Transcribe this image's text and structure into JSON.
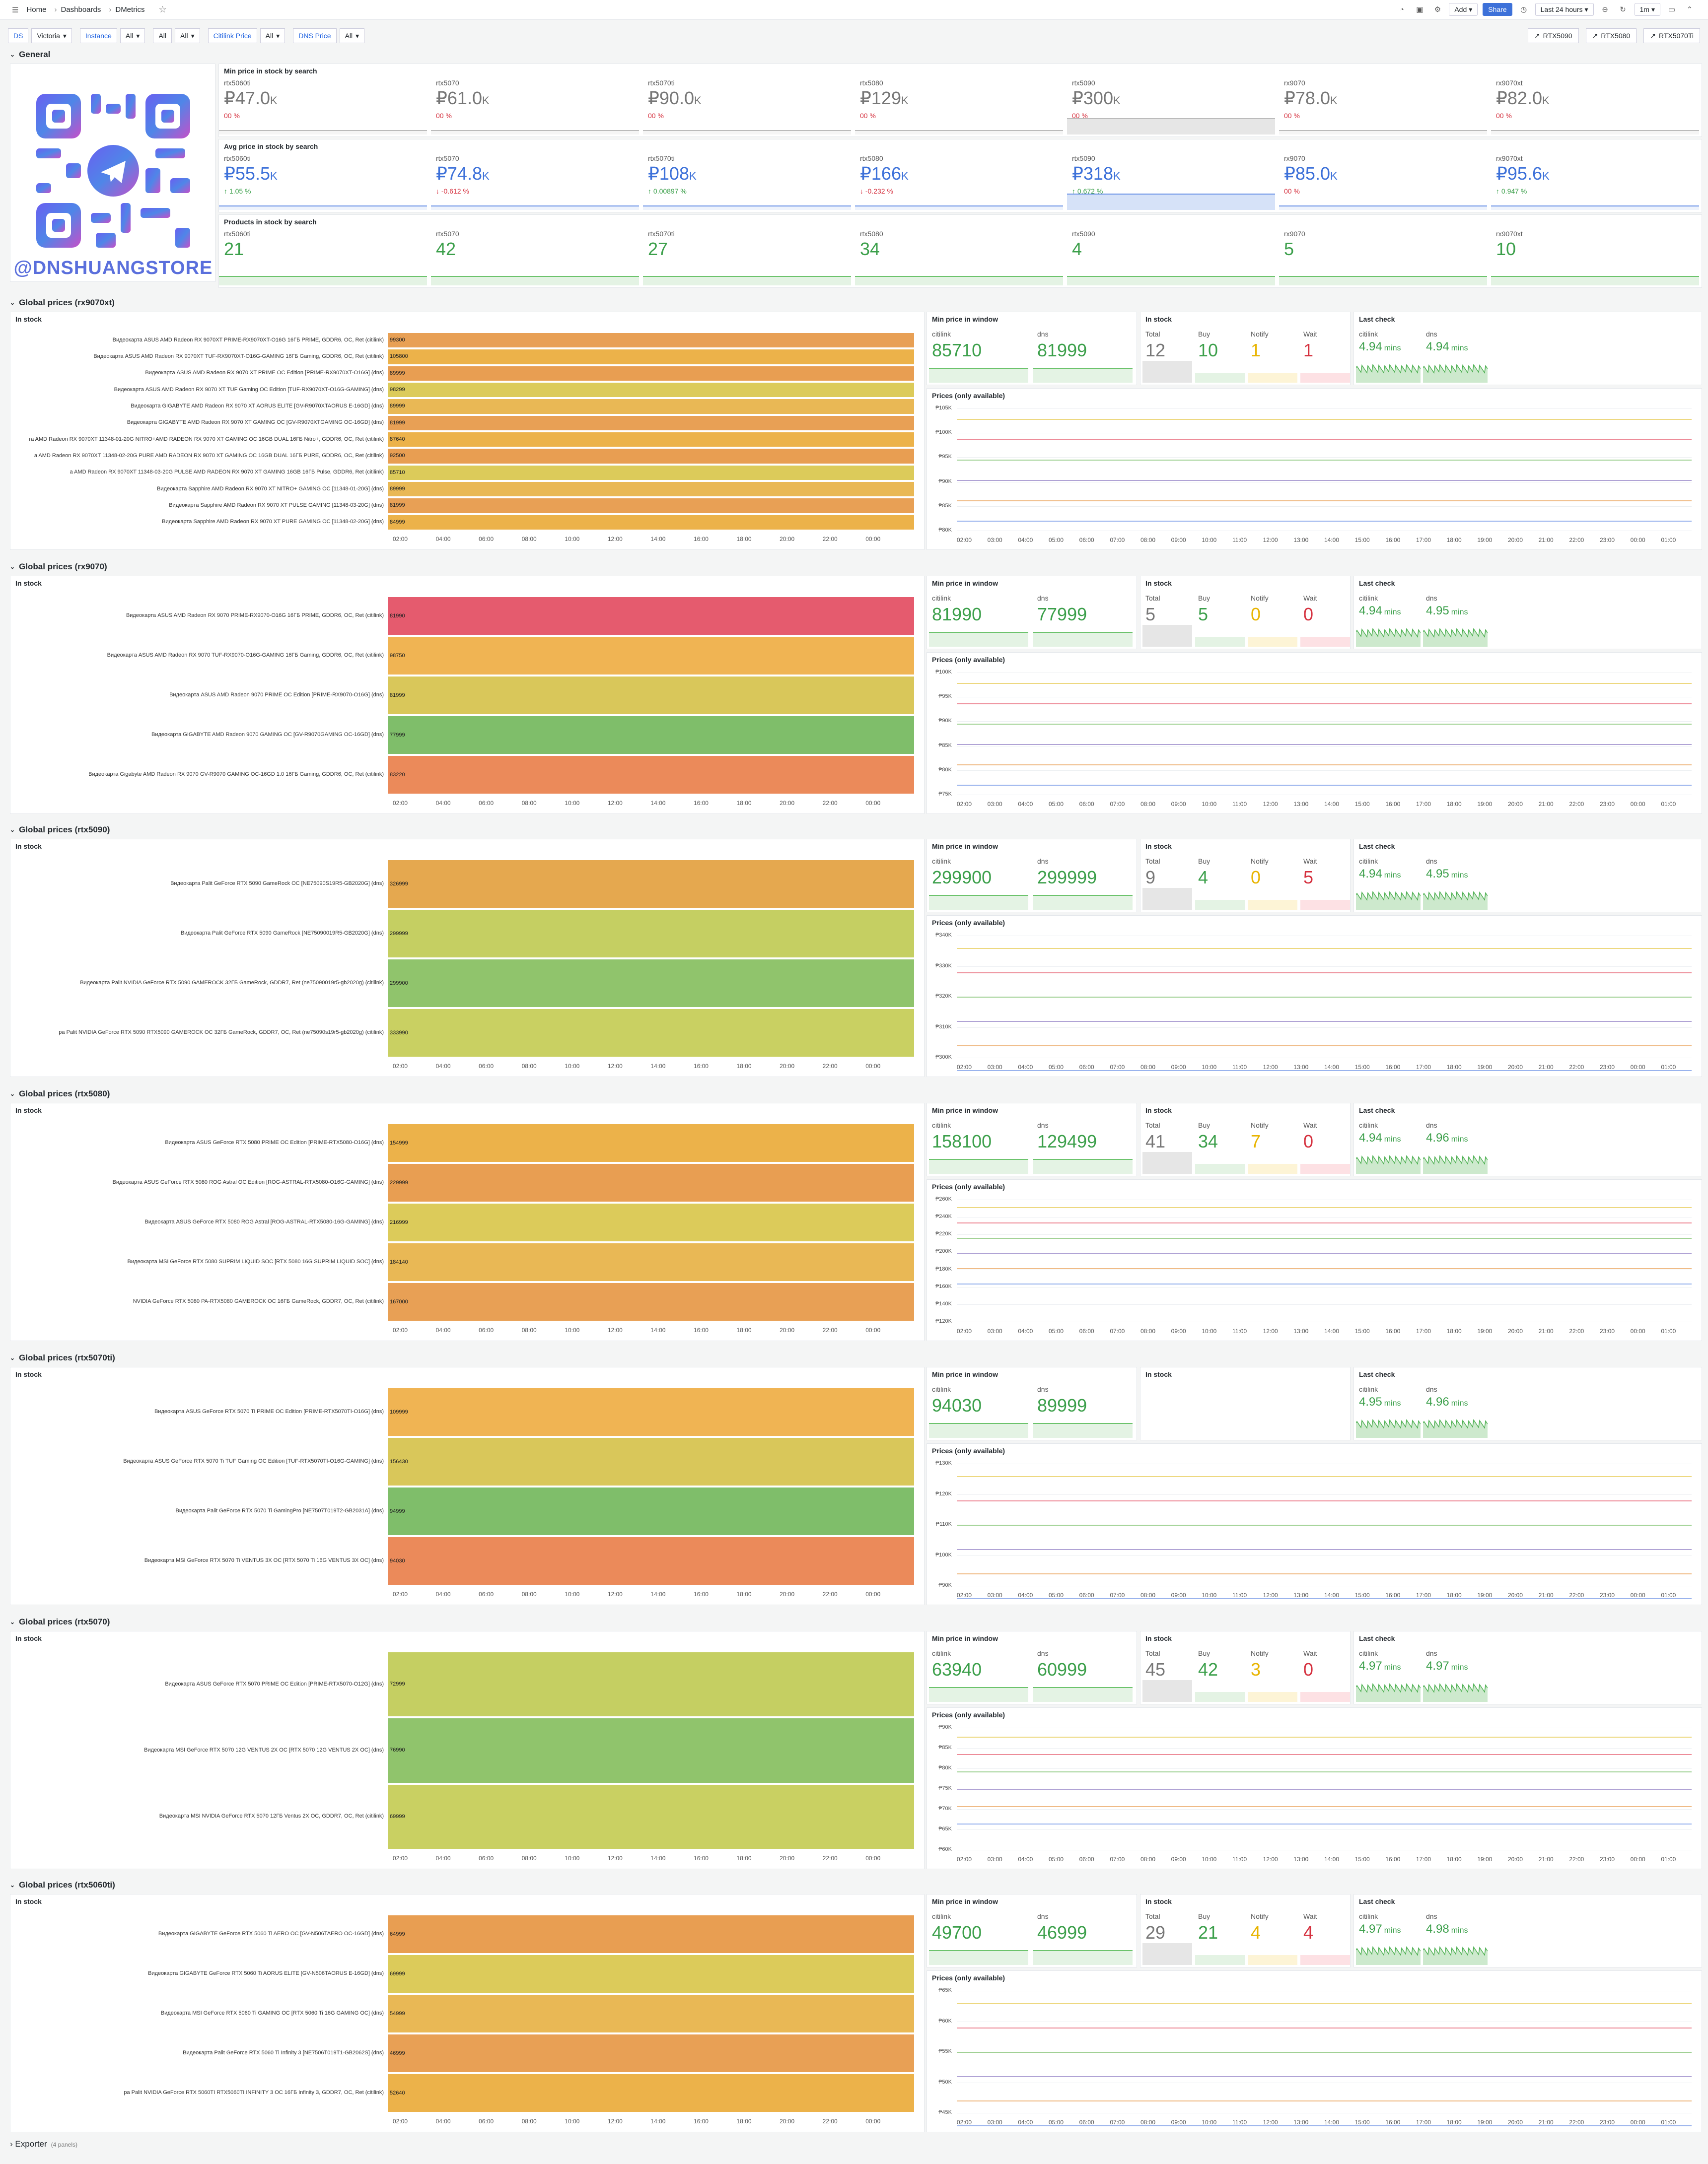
{
  "breadcrumb": [
    "Home",
    "Dashboards",
    "DMetrics"
  ],
  "topbar": {
    "add": "Add",
    "share": "Share",
    "time_range": "Last 24 hours",
    "refresh": "1m"
  },
  "variables": [
    {
      "label": "DS",
      "value": "Victoria"
    },
    {
      "label": "Instance",
      "value": "All"
    },
    {
      "label": "",
      "value": "All"
    },
    {
      "label": "",
      "value": "All"
    },
    {
      "label": "Citilink Price",
      "value": "All"
    },
    {
      "label": "DNS Price",
      "value": "All"
    }
  ],
  "links": [
    "RTX5090",
    "RTX5080",
    "RTX5070Ti"
  ],
  "general": {
    "title": "General",
    "logo_text": "@DNSHUANGSTORE",
    "min_title": "Min price in stock by search",
    "avg_title": "Avg price in stock by search",
    "prod_title": "Products in stock by search",
    "min": [
      {
        "n": "rtx5060ti",
        "v": "₽47.0",
        "u": "K",
        "d": "00 %"
      },
      {
        "n": "rtx5070",
        "v": "₽61.0",
        "u": "K",
        "d": "00 %"
      },
      {
        "n": "rtx5070ti",
        "v": "₽90.0",
        "u": "K",
        "d": "00 %"
      },
      {
        "n": "rtx5080",
        "v": "₽129",
        "u": "K",
        "d": "00 %"
      },
      {
        "n": "rtx5090",
        "v": "₽300",
        "u": "K",
        "d": "00 %"
      },
      {
        "n": "rx9070",
        "v": "₽78.0",
        "u": "K",
        "d": "00 %"
      },
      {
        "n": "rx9070xt",
        "v": "₽82.0",
        "u": "K",
        "d": "00 %"
      }
    ],
    "avg": [
      {
        "n": "rtx5060ti",
        "v": "₽55.5",
        "u": "K",
        "d": "↑ 1.05 %"
      },
      {
        "n": "rtx5070",
        "v": "₽74.8",
        "u": "K",
        "d": "↓ -0.612 %"
      },
      {
        "n": "rtx5070ti",
        "v": "₽108",
        "u": "K",
        "d": "↑ 0.00897 %"
      },
      {
        "n": "rtx5080",
        "v": "₽166",
        "u": "K",
        "d": "↓ -0.232 %"
      },
      {
        "n": "rtx5090",
        "v": "₽318",
        "u": "K",
        "d": "↑ 0.672 %"
      },
      {
        "n": "rx9070",
        "v": "₽85.0",
        "u": "K",
        "d": "00 %"
      },
      {
        "n": "rx9070xt",
        "v": "₽95.6",
        "u": "K",
        "d": "↑ 0.947 %"
      }
    ],
    "prod": [
      {
        "n": "rtx5060ti",
        "v": "21"
      },
      {
        "n": "rtx5070",
        "v": "42"
      },
      {
        "n": "rtx5070ti",
        "v": "27"
      },
      {
        "n": "rtx5080",
        "v": "34"
      },
      {
        "n": "rtx5090",
        "v": "4"
      },
      {
        "n": "rx9070",
        "v": "5"
      },
      {
        "n": "rx9070xt",
        "v": "10"
      }
    ]
  },
  "labels": {
    "in_stock": "In stock",
    "min_window": "Min price in window",
    "in_stock2": "In stock",
    "last_check": "Last check",
    "prices": "Prices (only available)",
    "citilink": "citilink",
    "dns": "dns",
    "total": "Total",
    "buy": "Buy",
    "notify": "Notify",
    "wait": "Wait"
  },
  "sections": [
    {
      "title": "Global prices (rx9070xt)",
      "citi": "85710",
      "dns": "81999",
      "total": "12",
      "buy": "10",
      "notify": "1",
      "wait": "1",
      "lc_c": "4.94",
      "lc_d": "4.94",
      "unit": "mins",
      "y": [
        "₱105K",
        "₱100K",
        "₱95K",
        "₱90K",
        "₱85K",
        "₱80K"
      ],
      "items": [
        [
          "Видеокарта ASUS AMD  Radeon RX 9070XT PRIME-RX9070XT-O16G 16ГБ PRIME, GDDR6, OC,  Ret (citilink)",
          "99300"
        ],
        [
          "Видеокарта ASUS AMD  Radeon RX 9070XT TUF-RX9070XT-O16G-GAMING 16ГБ Gaming, GDDR6, OC,  Ret (citilink)",
          "105800"
        ],
        [
          "Видеокарта ASUS AMD Radeon RX 9070 XT PRIME OC Edition [PRIME-RX9070XT-O16G] (dns)",
          "89999"
        ],
        [
          "Видеокарта ASUS AMD Radeon RX 9070 XT TUF Gaming OC Edition [TUF-RX9070XT-O16G-GAMING] (dns)",
          "98299"
        ],
        [
          "Видеокарта GIGABYTE AMD Radeon RX 9070 XT AORUS ELITE [GV-R9070XTAORUS E-16GD] (dns)",
          "89999"
        ],
        [
          "Видеокарта GIGABYTE AMD Radeon RX 9070 XT GAMING OC [GV-R9070XTGAMING OC-16GD] (dns)",
          "81999"
        ],
        [
          "ra AMD Radeon RX 9070XT 11348-01-20G NITRO+AMD RADEON RX 9070 XT GAMING OC 16GB DUAL 16ГБ Nitro+, GDDR6, OC,  Ret (citilink)",
          "87640"
        ],
        [
          "a AMD Radeon RX 9070XT 11348-02-20G PURE AMD RADEON RX 9070 XT GAMING OC 16GB DUAL 16ГБ PURE, GDDR6, OC,  Ret (citilink)",
          "92500"
        ],
        [
          "a AMD  Radeon RX 9070XT 11348-03-20G PULSE AMD RADEON RX 9070 XT GAMING 16GB 16ГБ Pulse, GDDR6, Ret (citilink)",
          "85710"
        ],
        [
          "Видеокарта Sapphire AMD Radeon RX 9070 XT NITRO+ GAMING OC [11348-01-20G] (dns)",
          "89999"
        ],
        [
          "Видеокарта Sapphire AMD Radeon RX 9070 XT PULSE GAMING [11348-03-20G] (dns)",
          "81999"
        ],
        [
          "Видеокарта Sapphire AMD Radeon RX 9070 XT PURE GAMING OC [11348-02-20G] (dns)",
          "84999"
        ]
      ]
    },
    {
      "title": "Global prices (rx9070)",
      "citi": "81990",
      "dns": "77999",
      "total": "5",
      "buy": "5",
      "notify": "0",
      "wait": "0",
      "lc_c": "4.94",
      "lc_d": "4.95",
      "unit": "mins",
      "y": [
        "₱100K",
        "₱95K",
        "₱90K",
        "₱85K",
        "₱80K",
        "₱75K"
      ],
      "items": [
        [
          "Видеокарта ASUS AMD  Radeon RX 9070 PRIME-RX9070-O16G 16ГБ PRIME, GDDR6, OC,  Ret (citilink)",
          "81990"
        ],
        [
          "Видеокарта ASUS AMD  Radeon RX 9070 TUF-RX9070-O16G-GAMING 16ГБ Gaming, GDDR6, OC,  Ret (citilink)",
          "98750"
        ],
        [
          "Видеокарта ASUS AMD Radeon 9070 PRIME OC Edition [PRIME-RX9070-O16G] (dns)",
          "81999"
        ],
        [
          "Видеокарта GIGABYTE AMD Radeon 9070 GAMING OC [GV-R9070GAMING OC-16GD] (dns)",
          "77999"
        ],
        [
          "Видеокарта Gigabyte AMD  Radeon RX 9070 GV-R9070 GAMING OC-16GD 1.0 16ГБ Gaming, GDDR6, OC,  Ret (citilink)",
          "83220"
        ]
      ]
    },
    {
      "title": "Global prices (rtx5090)",
      "citi": "299900",
      "dns": "299999",
      "total": "9",
      "buy": "4",
      "notify": "0",
      "wait": "5",
      "lc_c": "4.94",
      "lc_d": "4.95",
      "unit": "mins",
      "y": [
        "₱340K",
        "₱330K",
        "₱320K",
        "₱310K",
        "₱300K"
      ],
      "items": [
        [
          "Видеокарта Palit GeForce RTX 5090 GameRock OC [NE75090S19R5-GB2020G] (dns)",
          "326999"
        ],
        [
          "Видеокарта Palit GeForce RTX 5090 GameRock [NE75090019R5-GB2020G] (dns)",
          "299999"
        ],
        [
          "Видеокарта Palit NVIDIA  GeForce RTX 5090 GAMEROCK 32ГБ GameRock, GDDR7, Ret (ne75090019r5-gb2020g) (citilink)",
          "299900"
        ],
        [
          "ра Palit NVIDIA  GeForce RTX 5090 RTX5090 GAMEROCK OC 32ГБ GameRock, GDDR7, OC,  Ret (ne75090s19r5-gb2020g) (citilink)",
          "333990"
        ]
      ]
    },
    {
      "title": "Global prices (rtx5080)",
      "citi": "158100",
      "dns": "129499",
      "total": "41",
      "buy": "34",
      "notify": "7",
      "wait": "0",
      "lc_c": "4.94",
      "lc_d": "4.96",
      "unit": "mins",
      "y": [
        "₱260K",
        "₱240K",
        "₱220K",
        "₱200K",
        "₱180K",
        "₱160K",
        "₱140K",
        "₱120K"
      ],
      "items": [
        [
          "Видеокарта ASUS GeForce RTX 5080 PRIME OC Edition [PRIME-RTX5080-O16G] (dns)",
          "154999"
        ],
        [
          "Видеокарта ASUS GeForce RTX 5080 ROG Astral OC Edition [ROG-ASTRAL-RTX5080-O16G-GAMING] (dns)",
          "229999"
        ],
        [
          "Видеокарта ASUS GeForce RTX 5080 ROG Astral [ROG-ASTRAL-RTX5080-16G-GAMING] (dns)",
          "216999"
        ],
        [
          "Видеокарта MSI GeForce RTX 5080 SUPRIM LIQUID SOC [RTX 5080 16G SUPRIM LIQUID SOC] (dns)",
          "184140"
        ],
        [
          "NVIDIA  GeForce RTX 5080 PA-RTX5080 GAMEROCK OC 16ГБ GameRock, GDDR7, OC,  Ret (citilink)",
          "167000"
        ]
      ]
    },
    {
      "title": "Global prices (rtx5070ti)",
      "citi": "94030",
      "dns": "89999",
      "lc_c": "4.95",
      "lc_d": "4.96",
      "unit": "mins",
      "y": [
        "₱130K",
        "₱120K",
        "₱110K",
        "₱100K",
        "₱90K"
      ],
      "items": [
        [
          "Видеокарта ASUS GeForce RTX 5070 Ti PRIME OC Edition [PRIME-RTX5070TI-O16G] (dns)",
          "109999"
        ],
        [
          "Видеокарта ASUS GeForce RTX 5070 Ti TUF Gaming OC Edition [TUF-RTX5070TI-O16G-GAMING] (dns)",
          "156430"
        ],
        [
          "Видеокарта Palit GeForce RTX 5070 Ti GamingPro [NE7507T019T2-GB2031A] (dns)",
          "94999"
        ],
        [
          "Видеокарта MSI GeForce RTX 5070 Ti VENTUS 3X OC [RTX 5070 Ti 16G VENTUS 3X OC] (dns)",
          "94030"
        ]
      ]
    },
    {
      "title": "Global prices (rtx5070)",
      "citi": "63940",
      "dns": "60999",
      "total": "45",
      "buy": "42",
      "notify": "3",
      "wait": "0",
      "lc_c": "4.97",
      "lc_d": "4.97",
      "unit": "mins",
      "y": [
        "₱90K",
        "₱85K",
        "₱80K",
        "₱75K",
        "₱70K",
        "₱65K",
        "₱60K"
      ],
      "items": [
        [
          "Видеокарта ASUS GeForce RTX 5070 PRIME OC Edition [PRIME-RTX5070-O12G] (dns)",
          "72999"
        ],
        [
          "Видеокарта MSI GeForce RTX 5070 12G VENTUS 2X OC [RTX 5070 12G VENTUS 2X OC] (dns)",
          "76990"
        ],
        [
          "Видеокарта MSI NVIDIA  GeForce RTX 5070 12ГБ Ventus 2X OC, GDDR7, OC,  Ret (citilink)",
          "69999"
        ]
      ]
    },
    {
      "title": "Global prices (rtx5060ti)",
      "citi": "49700",
      "dns": "46999",
      "total": "29",
      "buy": "21",
      "notify": "4",
      "wait": "4",
      "lc_c": "4.97",
      "lc_d": "4.98",
      "unit": "mins",
      "y": [
        "₱65K",
        "₱60K",
        "₱55K",
        "₱50K",
        "₱45K"
      ],
      "items": [
        [
          "Видеокарта GIGABYTE GeForce RTX 5060 Ti AERO OC [GV-N506TAERO OC-16GD] (dns)",
          "64999"
        ],
        [
          "Видеокарта GIGABYTE GeForce RTX 5060 Ti AORUS ELITE [GV-N506TAORUS E-16GD] (dns)",
          "69999"
        ],
        [
          "Видеокарта MSI GeForce RTX 5060 Ti GAMING OC [RTX 5060 Ti 16G GAMING OC] (dns)",
          "54999"
        ],
        [
          "Видеокарта Palit GeForce RTX 5060 Ti Infinity 3 [NE7506T019T1-GB2062S] (dns)",
          "46999"
        ],
        [
          "ра Palit NVIDIA  GeForce RTX 5060TI RTX5060TI INFINITY 3 OC 16ГБ Infinity 3, GDDR7, OC,  Ret (citilink)",
          "52640"
        ]
      ]
    }
  ],
  "xticks": [
    "02:00",
    "04:00",
    "06:00",
    "08:00",
    "10:00",
    "12:00",
    "14:00",
    "16:00",
    "18:00",
    "20:00",
    "22:00",
    "00:00"
  ],
  "xticks2": [
    "02:00",
    "03:00",
    "04:00",
    "05:00",
    "06:00",
    "07:00",
    "08:00",
    "09:00",
    "10:00",
    "11:00",
    "12:00",
    "13:00",
    "14:00",
    "15:00",
    "16:00",
    "17:00",
    "18:00",
    "19:00",
    "20:00",
    "21:00",
    "22:00",
    "23:00",
    "00:00",
    "01:00"
  ],
  "footer": {
    "title": "Exporter",
    "note": "(4 panels)"
  }
}
